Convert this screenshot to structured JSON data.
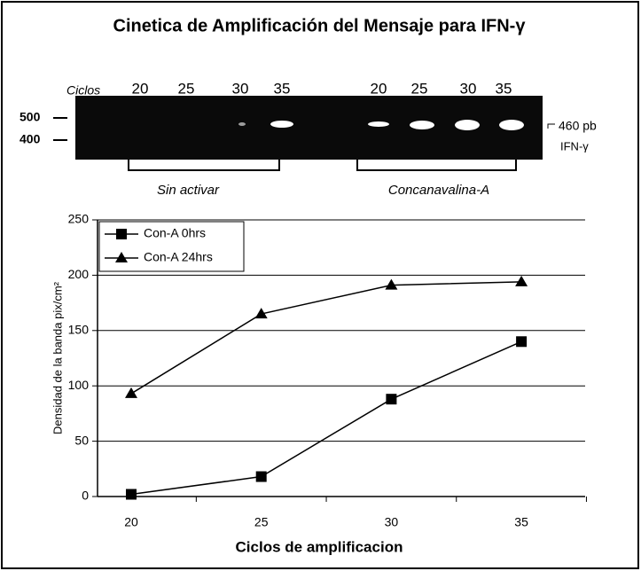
{
  "title": "Cinetica de Amplificación del Mensaje para IFN-γ",
  "gel": {
    "cycles_label": "Ciclos",
    "lanes": [
      "20",
      "25",
      "30",
      "35",
      "20",
      "25",
      "30",
      "35"
    ],
    "markers": [
      "500",
      "400"
    ],
    "band_label": "460 pb",
    "gene_label": "IFN-γ",
    "groups": [
      "Sin activar",
      "Concanavalina-A"
    ]
  },
  "chart_data": {
    "type": "line",
    "categories": [
      "20",
      "25",
      "30",
      "35"
    ],
    "series": [
      {
        "name": "Con-A 0hrs",
        "color": "#000000",
        "marker": "square",
        "values": [
          2,
          18,
          88,
          140
        ]
      },
      {
        "name": "Con-A 24hrs",
        "color": "#000000",
        "marker": "triangle",
        "values": [
          93,
          165,
          191,
          194
        ]
      }
    ],
    "ylim": [
      0,
      250
    ],
    "yticks": [
      0,
      50,
      100,
      150,
      200,
      250
    ],
    "grid": true,
    "xlabel": "Ciclos de amplificacion",
    "ylabel": "Densidad de la banda pix/cm²",
    "legend": "upper left"
  }
}
